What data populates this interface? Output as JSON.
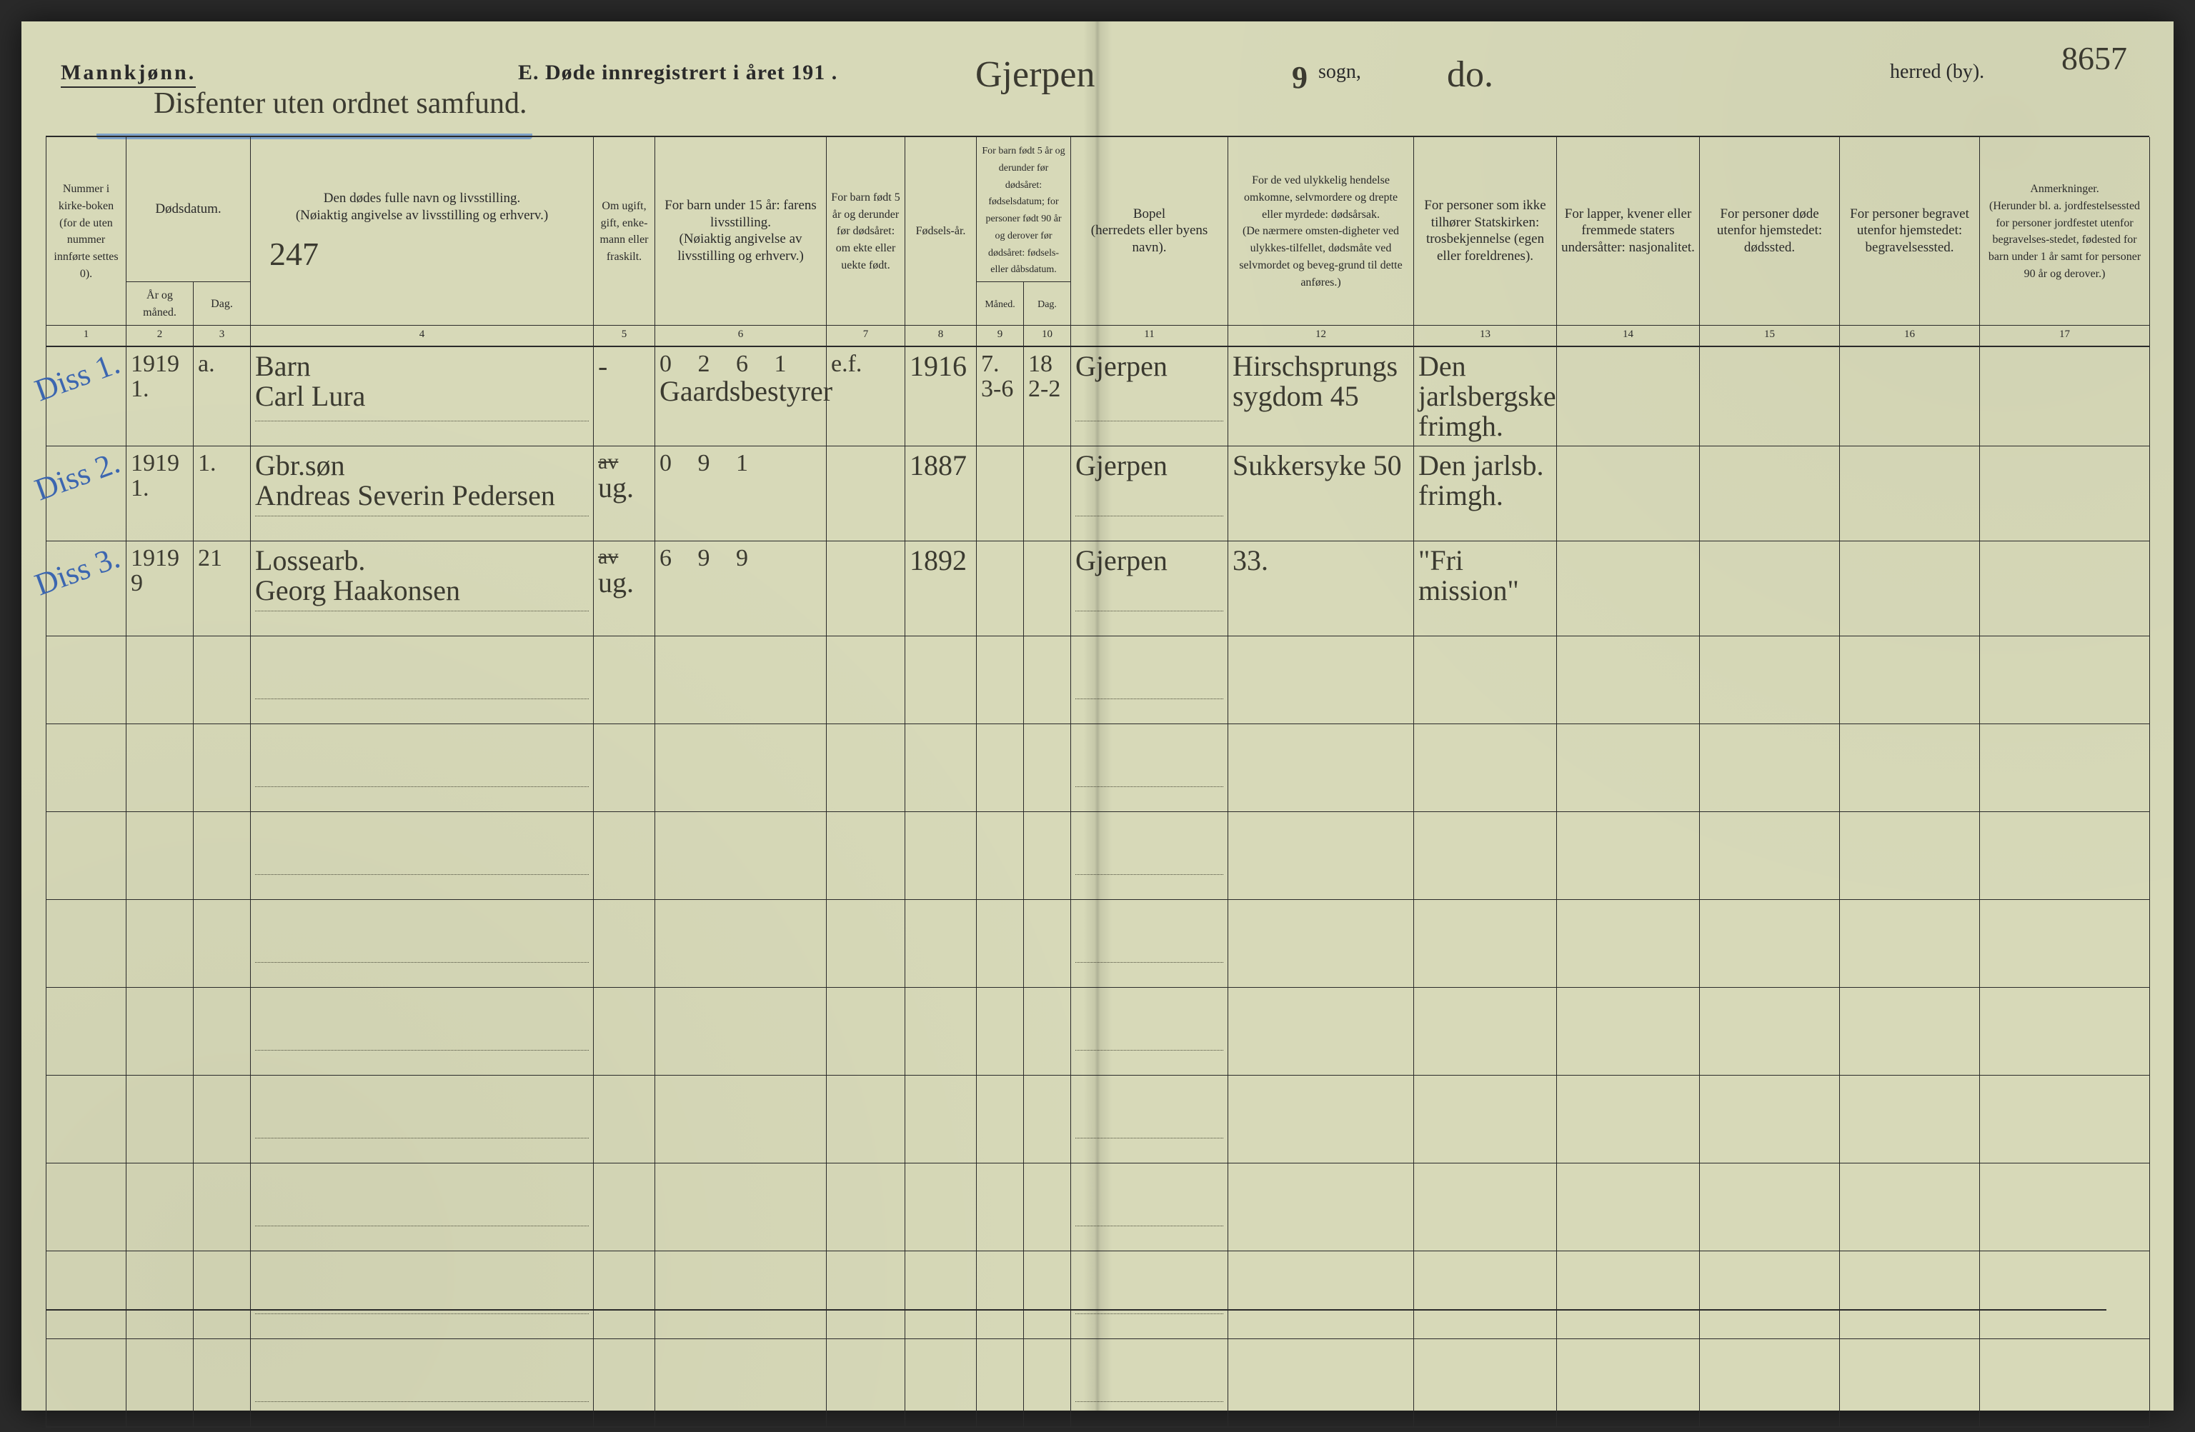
{
  "header": {
    "gender": "Mannkjønn.",
    "title_prefix": "E.   Døde innregistrert i året 191",
    "title_suffix": " .",
    "sogn_label": "sogn,",
    "herred_label": "herred (by).",
    "hw_year_last_digit": "9",
    "hw_dissenter_note": "Disfenter uten ordnet samfund.",
    "hw_sogn": "Gjerpen",
    "hw_do": "do.",
    "hw_page_no": "8657",
    "hw_side_seq": "247"
  },
  "columns": {
    "c1": {
      "num": "1",
      "top": "Nummer i kirke-boken (for de uten nummer innførte settes 0)."
    },
    "c2": {
      "top": "Dødsdatum."
    },
    "c2a": {
      "num": "2",
      "sub": "År og måned."
    },
    "c2b": {
      "num": "3",
      "sub": "Dag."
    },
    "c4": {
      "num": "4",
      "top": "Den dødes fulle navn og livsstilling.\n(Nøiaktig angivelse av livsstilling og erhverv.)"
    },
    "c5": {
      "num": "5",
      "top": "Om ugift, gift, enke-mann eller fraskilt."
    },
    "c6": {
      "num": "6",
      "top": "For barn under 15 år: farens livsstilling.\n(Nøiaktig angivelse av livsstilling og erhverv.)"
    },
    "c7": {
      "num": "7",
      "top": "For barn født 5 år og derunder før dødsåret: om ekte eller uekte født."
    },
    "c8": {
      "num": "8",
      "top": "Fødsels-år."
    },
    "c910": {
      "top": "For barn født 5 år og derunder før dødsåret: fødselsdatum; for personer født 90 år og derover før dødsåret: fødsels- eller dåbsdatum."
    },
    "c9": {
      "num": "9",
      "sub": "Måned."
    },
    "c10": {
      "num": "10",
      "sub": "Dag."
    },
    "c11": {
      "num": "11",
      "top": "Bopel\n(herredets eller byens navn)."
    },
    "c12": {
      "num": "12",
      "top": "For de ved ulykkelig hendelse omkomne, selvmordere og drepte eller myrdede: dødsårsak.\n(De nærmere omsten-digheter ved ulykkes-tilfellet, dødsmåte ved selvmordet og beveg-grund til dette anføres.)"
    },
    "c13": {
      "num": "13",
      "top": "For personer som ikke tilhører Statskirken: trosbekjennelse (egen eller foreldrenes)."
    },
    "c14": {
      "num": "14",
      "top": "For lapper, kvener eller fremmede staters undersåtter: nasjonalitet."
    },
    "c15": {
      "num": "15",
      "top": "For personer døde utenfor hjemstedet: dødssted."
    },
    "c16": {
      "num": "16",
      "top": "For personer begravet utenfor hjemstedet: begravelsessted."
    },
    "c17": {
      "num": "17",
      "top": "Anmerkninger.\n(Herunder bl. a. jordfestelsessted for personer jordfestet utenfor begravelses-stedet, fødested for barn under 1 år samt for personer 90 år og derover.)"
    }
  },
  "rows": [
    {
      "margin": "Diss 1.",
      "c1": "",
      "c2a": "1919\n1.",
      "c2b": "a.",
      "c4": "Barn\nCarl Lura",
      "c5": "-",
      "c6_top": "0 2 6 1",
      "c6": "Gaardsbestyrer",
      "c7": "e.f.",
      "c8": "1916",
      "c9": "7.\n3-6",
      "c10": "18\n2-2",
      "c11": "Gjerpen",
      "c12": "Hirschsprungs\nsygdom   45",
      "c13": "Den jarlsbergske\nfrimgh."
    },
    {
      "margin": "Diss 2.",
      "c1": "",
      "c2a": "1919\n1.",
      "c2b": "1.",
      "c4": "Gbr.søn\nAndreas Severin Pedersen",
      "c5_top": "av",
      "c5": "ug.",
      "c6_top": "0 9 1",
      "c6": "",
      "c7": "",
      "c8": "1887",
      "c9": "",
      "c10": "",
      "c11": "Gjerpen",
      "c12": "Sukkersyke  50",
      "c13": "Den jarlsb.\nfrimgh."
    },
    {
      "margin": "Diss 3.",
      "c1": "",
      "c2a": "1919\n9",
      "c2b": "21",
      "c4": "Lossearb.\nGeorg Haakonsen",
      "c5_top": "av",
      "c5": "ug.",
      "c6_top": "6 9 9",
      "c6": "",
      "c7": "",
      "c8": "1892",
      "c9": "",
      "c10": "",
      "c11": "Gjerpen",
      "c12": "33.",
      "c13": "\"Fri mission\""
    }
  ],
  "empty_row_count": 9,
  "colors": {
    "paper": "#d7d9b8",
    "ink": "#2a2a2a",
    "hand_ink": "#3b3a30",
    "blue_pencil": "#3c66b0",
    "blue_underline": "#5a8bd0"
  }
}
